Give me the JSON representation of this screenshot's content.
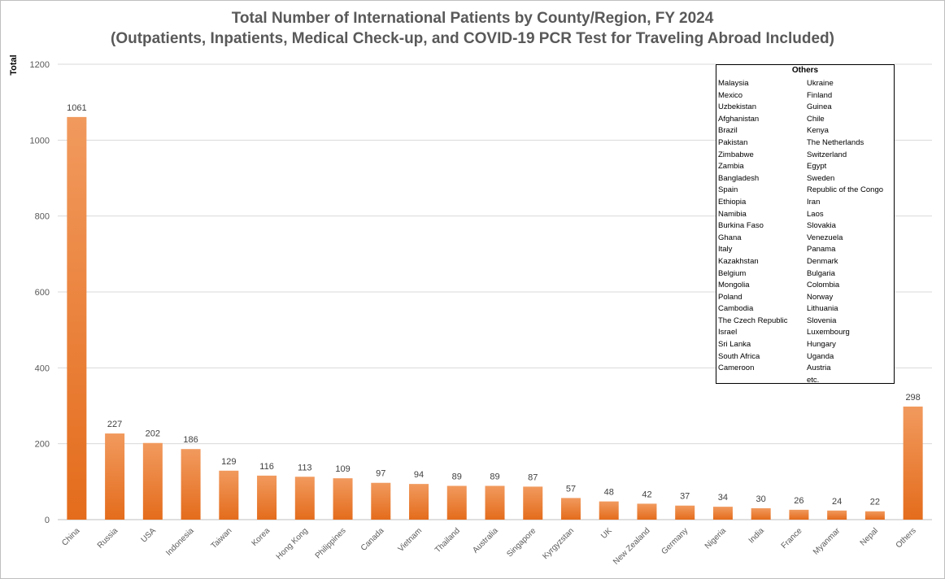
{
  "chart_data": {
    "type": "bar",
    "title": "Total Number of International Patients by County/Region, FY 2024",
    "subtitle": "(Outpatients, Inpatients, Medical Check-up, and COVID-19 PCR Test for Traveling Abroad Included)",
    "ylabel": "Total",
    "xlabel": "",
    "ylim": [
      0,
      1200
    ],
    "yticks": [
      0,
      200,
      400,
      600,
      800,
      1000,
      1200
    ],
    "grid": true,
    "categories": [
      "China",
      "Russia",
      "USA",
      "Indonesia",
      "Taiwan",
      "Korea",
      "Hong Kong",
      "Philippines",
      "Canada",
      "Vietnam",
      "Thailand",
      "Australia",
      "Singapore",
      "Kyrgyzstan",
      "UK",
      "New Zealand",
      "Germany",
      "Nigeria",
      "India",
      "France",
      "Myanmar",
      "Nepal",
      "Others"
    ],
    "values": [
      1061,
      227,
      202,
      186,
      129,
      116,
      113,
      109,
      97,
      94,
      89,
      89,
      87,
      57,
      48,
      42,
      37,
      34,
      30,
      26,
      24,
      22,
      298
    ],
    "bar_color": "#ed7d31"
  },
  "others_box": {
    "title": "Others",
    "left_column": [
      "Malaysia",
      "Mexico",
      "Uzbekistan",
      "Afghanistan",
      "Brazil",
      "Pakistan",
      "Zimbabwe",
      "Zambia",
      "Bangladesh",
      "Spain",
      "Ethiopia",
      "Namibia",
      "Burkina Faso",
      "Ghana",
      "Italy",
      "Kazakhstan",
      "Belgium",
      "Mongolia",
      "Poland",
      "Cambodia",
      "The Czech Republic",
      "Israel",
      "Sri Lanka",
      "South Africa",
      "Cameroon"
    ],
    "right_column": [
      "Ukraine",
      "Finland",
      "Guinea",
      "Chile",
      "Kenya",
      "The Netherlands",
      "Switzerland",
      "Egypt",
      "Sweden",
      "Republic of the Congo",
      "Iran",
      "Laos",
      "Slovakia",
      "Venezuela",
      "Panama",
      "Denmark",
      "Bulgaria",
      "Colombia",
      "Norway",
      "Lithuania",
      "Slovenia",
      "Luxembourg",
      "Hungary",
      "Uganda",
      "Austria",
      "etc."
    ]
  }
}
